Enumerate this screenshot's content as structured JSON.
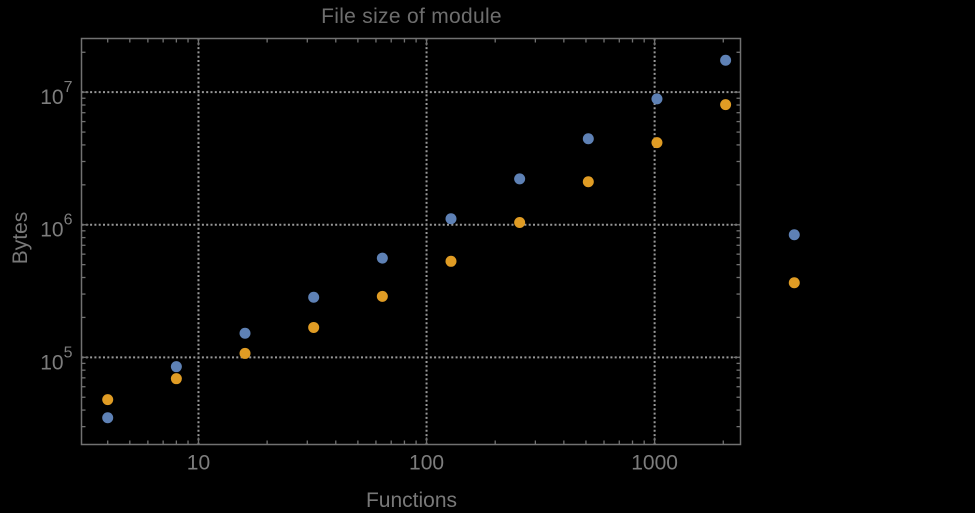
{
  "chart_data": {
    "type": "scatter",
    "title": "File size of module",
    "xlabel": "Functions",
    "ylabel": "Bytes",
    "x_scale": "log",
    "y_scale": "log",
    "grid": "dotted",
    "legend_position": "none",
    "xlim": [
      3.07,
      2380
    ],
    "ylim": [
      22000,
      25400000
    ],
    "x": [
      4,
      8,
      16,
      32,
      64,
      128,
      256,
      512,
      1024,
      2048,
      4096
    ],
    "series": [
      {
        "name": "blue",
        "color": "#5e81b5",
        "values": [
          35000,
          85000,
          152000,
          284000,
          560000,
          1110000,
          2220000,
          4450000,
          8900000,
          17400000,
          840000
        ]
      },
      {
        "name": "orange",
        "color": "#e09c24",
        "values": [
          48000,
          69000,
          107000,
          168000,
          288000,
          530000,
          1040000,
          2110000,
          4160000,
          8050000,
          365000
        ]
      }
    ],
    "x_ticks": [
      {
        "value": 10,
        "label": "10"
      },
      {
        "value": 100,
        "label": "100"
      },
      {
        "value": 1000,
        "label": "1000"
      }
    ],
    "y_ticks": [
      {
        "value": 100000,
        "base": "10",
        "exp": "5"
      },
      {
        "value": 1000000,
        "base": "10",
        "exp": "6"
      },
      {
        "value": 10000000,
        "base": "10",
        "exp": "7"
      }
    ],
    "colors": {
      "background": "#000000",
      "frame": "#717171",
      "grid": "#989898",
      "tick_text": "#7d7d7d",
      "title_text": "#6e6e6e",
      "series_blue": "#5e81b5",
      "series_orange": "#e09c24"
    }
  }
}
